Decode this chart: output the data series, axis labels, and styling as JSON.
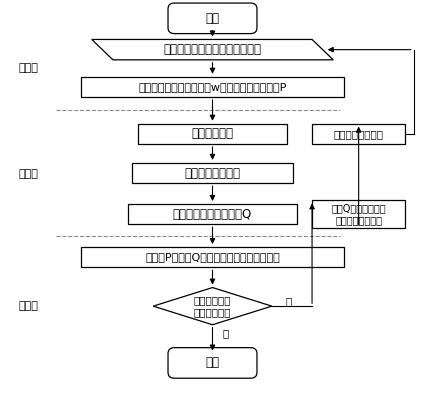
{
  "background_color": "#ffffff",
  "nodes": {
    "start": {
      "text": "开始",
      "shape": "rounded_rect"
    },
    "input": {
      "text": "读入高光谱图像，生成初始集合",
      "shape": "parallelogram"
    },
    "selectP": {
      "text": "根据个体适应值大小选出w个最佳个体组成集合P",
      "shape": "rect"
    },
    "clone": {
      "text": "进行克隆增殖",
      "shape": "rect"
    },
    "mutate": {
      "text": "进行高频变异操作",
      "shape": "rect"
    },
    "selectQ": {
      "text": "选出最佳个体组成集合Q",
      "shape": "rect"
    },
    "calc": {
      "text": "对集合P与集合Q进行归一化多维互信息计算",
      "shape": "rect"
    },
    "diamond": {
      "text": "计算结果是否\n达到阈值要求",
      "shape": "diamond"
    },
    "end": {
      "text": "结束",
      "shape": "rounded_rect"
    },
    "right_top": {
      "text": "低适应值个体替换",
      "shape": "rect"
    },
    "right_bot": {
      "text": "集合Q代替初始集合\n中的低适应值个体",
      "shape": "rect"
    }
  },
  "step_labels": {
    "step1": "步骤一",
    "step2": "步骤二",
    "step3": "步骤三"
  },
  "yes_label": "是",
  "no_label": "否",
  "font_size": 8.5
}
